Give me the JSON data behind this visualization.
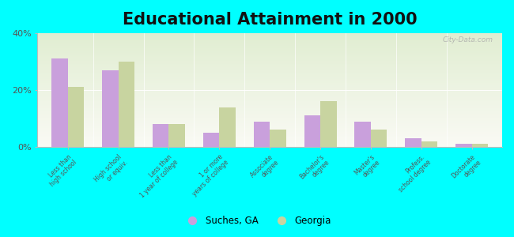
{
  "title": "Educational Attainment in 2000",
  "categories": [
    "Less than\nhigh school",
    "High school\nor equiv.",
    "Less than\n1 year of college",
    "1 or more\nyears of college",
    "Associate\ndegree",
    "Bachelor's\ndegree",
    "Master's\ndegree",
    "Profess.\nschool degree",
    "Doctorate\ndegree"
  ],
  "suches_values": [
    31,
    27,
    8,
    5,
    9,
    11,
    9,
    3,
    1
  ],
  "georgia_values": [
    21,
    30,
    8,
    14,
    6,
    16,
    6,
    2,
    1
  ],
  "suches_color": "#c9a0dc",
  "georgia_color": "#c8d4a0",
  "background_color": "#00ffff",
  "ylim": [
    0,
    40
  ],
  "yticks": [
    0,
    20,
    40
  ],
  "ytick_labels": [
    "0%",
    "20%",
    "40%"
  ],
  "legend_suches": "Suches, GA",
  "legend_georgia": "Georgia",
  "title_fontsize": 15,
  "watermark": "City-Data.com"
}
